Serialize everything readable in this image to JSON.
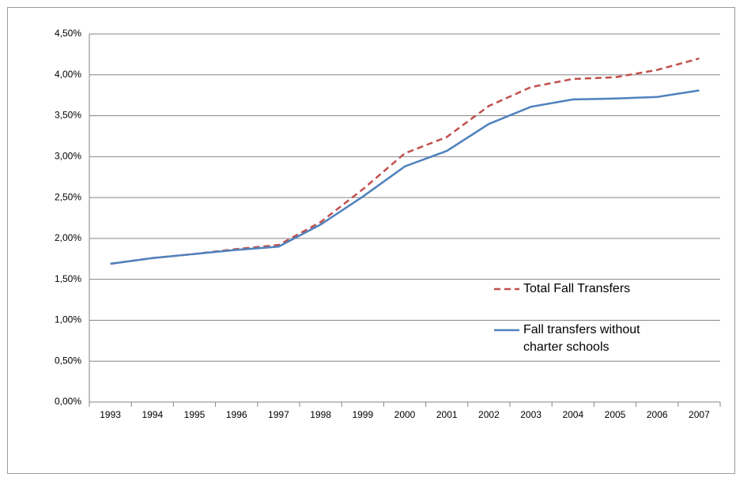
{
  "chart_data": {
    "type": "line",
    "categories": [
      "1993",
      "1994",
      "1995",
      "1996",
      "1997",
      "1998",
      "1999",
      "2000",
      "2001",
      "2002",
      "2003",
      "2004",
      "2005",
      "2006",
      "2007"
    ],
    "series": [
      {
        "name": "Total Fall Transfers",
        "color": "#c0504d",
        "dashed": true,
        "values": [
          1.69,
          1.76,
          1.81,
          1.87,
          1.92,
          2.2,
          2.6,
          3.04,
          3.24,
          3.62,
          3.85,
          3.95,
          3.97,
          4.06,
          4.2
        ]
      },
      {
        "name": "Fall transfers without charter schools",
        "color": "#4f81bd",
        "dashed": false,
        "values": [
          1.69,
          1.76,
          1.81,
          1.86,
          1.9,
          2.17,
          2.51,
          2.88,
          3.07,
          3.4,
          3.61,
          3.7,
          3.71,
          3.73,
          3.81
        ]
      }
    ],
    "ylim": [
      0,
      4.5
    ],
    "yticks": [
      {
        "value": 0,
        "label": "0,00%"
      },
      {
        "value": 0.5,
        "label": "0,50%"
      },
      {
        "value": 1,
        "label": "1,00%"
      },
      {
        "value": 1.5,
        "label": "1,50%"
      },
      {
        "value": 2,
        "label": "2,00%"
      },
      {
        "value": 2.5,
        "label": "2,50%"
      },
      {
        "value": 3,
        "label": "3,00%"
      },
      {
        "value": 3.5,
        "label": "3,50%"
      },
      {
        "value": 4,
        "label": "4,00%"
      },
      {
        "value": 4.5,
        "label": "4,50%"
      }
    ],
    "grid": true,
    "legend": "right"
  }
}
